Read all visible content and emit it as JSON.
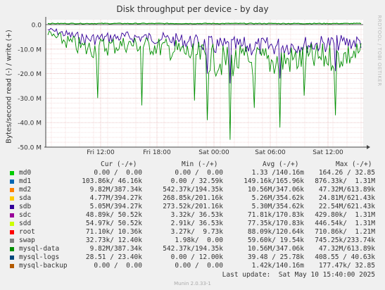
{
  "title": "Disk throughput per device - by day",
  "watermark": "RRDTOOL / TOBI OETIKER",
  "footer": "Munin 2.0.33-1",
  "last_update": "Last update:  Sat May 10 15:40:00 2025",
  "legend_headers": [
    "Cur (-/+)",
    "Min (-/+)",
    "Avg (-/+)",
    "Max (-/+)"
  ],
  "legend": [
    {
      "name": "md0",
      "color": "#00cc00",
      "cur": "0.00 /  0.00",
      "min": "0.00 /  0.00",
      "avg": "1.33 /140.16m",
      "max": "164.26 / 32.85"
    },
    {
      "name": "md1",
      "color": "#0066b3",
      "cur": "103.86k/ 46.16k",
      "min": "0.00 / 32.59k",
      "avg": "149.16k/165.96k",
      "max": "876.33k/  1.31M"
    },
    {
      "name": "md2",
      "color": "#ff8000",
      "cur": "9.82M/387.34k",
      "min": "542.37k/194.35k",
      "avg": "10.56M/347.06k",
      "max": "47.32M/613.89k"
    },
    {
      "name": "sda",
      "color": "#ffcc00",
      "cur": "4.77M/394.27k",
      "min": "268.85k/201.16k",
      "avg": "5.26M/354.62k",
      "max": "24.81M/621.43k"
    },
    {
      "name": "sdb",
      "color": "#330099",
      "cur": "5.05M/394.27k",
      "min": "273.52k/201.16k",
      "avg": "5.30M/354.62k",
      "max": "22.54M/621.43k"
    },
    {
      "name": "sdc",
      "color": "#990099",
      "cur": "48.89k/ 50.52k",
      "min": "3.32k/ 36.53k",
      "avg": "71.81k/170.83k",
      "max": "429.80k/  1.31M"
    },
    {
      "name": "sdd",
      "color": "#ccff00",
      "cur": "54.97k/ 50.52k",
      "min": "2.91k/ 36.53k",
      "avg": "77.35k/170.83k",
      "max": "446.54k/  1.31M"
    },
    {
      "name": "root",
      "color": "#ff0000",
      "cur": "71.10k/ 10.36k",
      "min": "3.27k/  9.73k",
      "avg": "88.09k/120.64k",
      "max": "710.86k/  1.21M"
    },
    {
      "name": "swap",
      "color": "#808080",
      "cur": "32.73k/ 12.40k",
      "min": "1.98k/  0.00",
      "avg": "59.60k/ 19.54k",
      "max": "745.25k/233.74k"
    },
    {
      "name": "mysql-data",
      "color": "#008f00",
      "cur": "9.82M/387.34k",
      "min": "542.37k/194.35k",
      "avg": "10.56M/347.06k",
      "max": "47.32M/613.89k"
    },
    {
      "name": "mysql-logs",
      "color": "#00487d",
      "cur": "28.51 / 23.40k",
      "min": "0.00 / 12.00k",
      "avg": "39.48 / 25.78k",
      "max": "408.55 / 40.63k"
    },
    {
      "name": "mysql-backup",
      "color": "#b35a00",
      "cur": "0.00 /  0.00",
      "min": "0.00 /  0.00",
      "avg": "1.42k/140.16m",
      "max": "177.47k/ 32.85"
    }
  ],
  "chart_data": {
    "type": "line",
    "title": "Disk throughput per device - by day",
    "ylabel": "Bytes/second read (-) / write (+)",
    "ylim": [
      -50000000,
      2000000
    ],
    "y_ticks": [
      0,
      -10000000,
      -20000000,
      -30000000,
      -40000000,
      -50000000
    ],
    "y_tick_labels": [
      "0.0",
      "-10.0 M",
      "-20.0 M",
      "-30.0 M",
      "-40.0 M",
      "-50.0 M"
    ],
    "x_tick_labels": [
      "Fri 12:00",
      "Fri 18:00",
      "Sat 00:00",
      "Sat 06:00",
      "Sat 12:00"
    ],
    "grid": true,
    "series": [
      {
        "name": "md2 / mysql-data (read)",
        "color": "#008f00",
        "profile": [
          [
            0,
            -4
          ],
          [
            0.12,
            -10
          ],
          [
            0.25,
            -8
          ],
          [
            0.35,
            -9
          ],
          [
            0.46,
            -12
          ],
          [
            0.55,
            -15
          ],
          [
            0.7,
            -15
          ],
          [
            0.85,
            -14
          ],
          [
            1.0,
            -12
          ]
        ],
        "spikes": [
          [
            0.58,
            -47
          ],
          [
            0.74,
            -42
          ],
          [
            0.51,
            -39
          ],
          [
            0.92,
            -37
          ],
          [
            0.66,
            -34
          ],
          [
            0.16,
            -30
          ],
          [
            0.47,
            -31
          ],
          [
            0.3,
            -33
          ],
          [
            0.82,
            -29
          ]
        ]
      },
      {
        "name": "sda / sdb (read)",
        "color": "#330099",
        "profile": [
          [
            0,
            -2
          ],
          [
            0.12,
            -6
          ],
          [
            0.25,
            -5
          ],
          [
            0.35,
            -5.5
          ],
          [
            0.46,
            -7
          ],
          [
            0.55,
            -9
          ],
          [
            0.7,
            -9
          ],
          [
            0.85,
            -8
          ],
          [
            1.0,
            -7
          ]
        ],
        "spikes": [
          [
            0.58,
            -24
          ],
          [
            0.74,
            -22
          ],
          [
            0.51,
            -20
          ],
          [
            0.92,
            -19
          ]
        ]
      }
    ]
  }
}
